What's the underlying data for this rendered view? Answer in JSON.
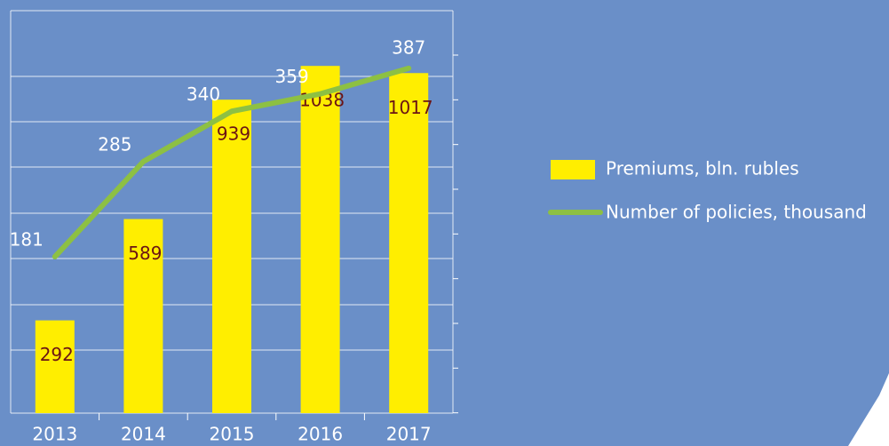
{
  "chart_data": {
    "type": "bar_line",
    "categories": [
      "2013",
      "2014",
      "2015",
      "2016",
      "2017"
    ],
    "series": [
      {
        "name": "Premiums, bln. rubles",
        "type": "bar",
        "color": "#ffee00",
        "values": [
          292,
          589,
          939,
          1038,
          1017
        ]
      },
      {
        "name": "Number of policies, thousand",
        "type": "line",
        "axis": "y2",
        "color": "#8dc043",
        "values": [
          181,
          285,
          340,
          359,
          387
        ]
      }
    ],
    "ylim": [
      20,
      1200
    ],
    "y2lim": [
      10,
      450
    ]
  }
}
